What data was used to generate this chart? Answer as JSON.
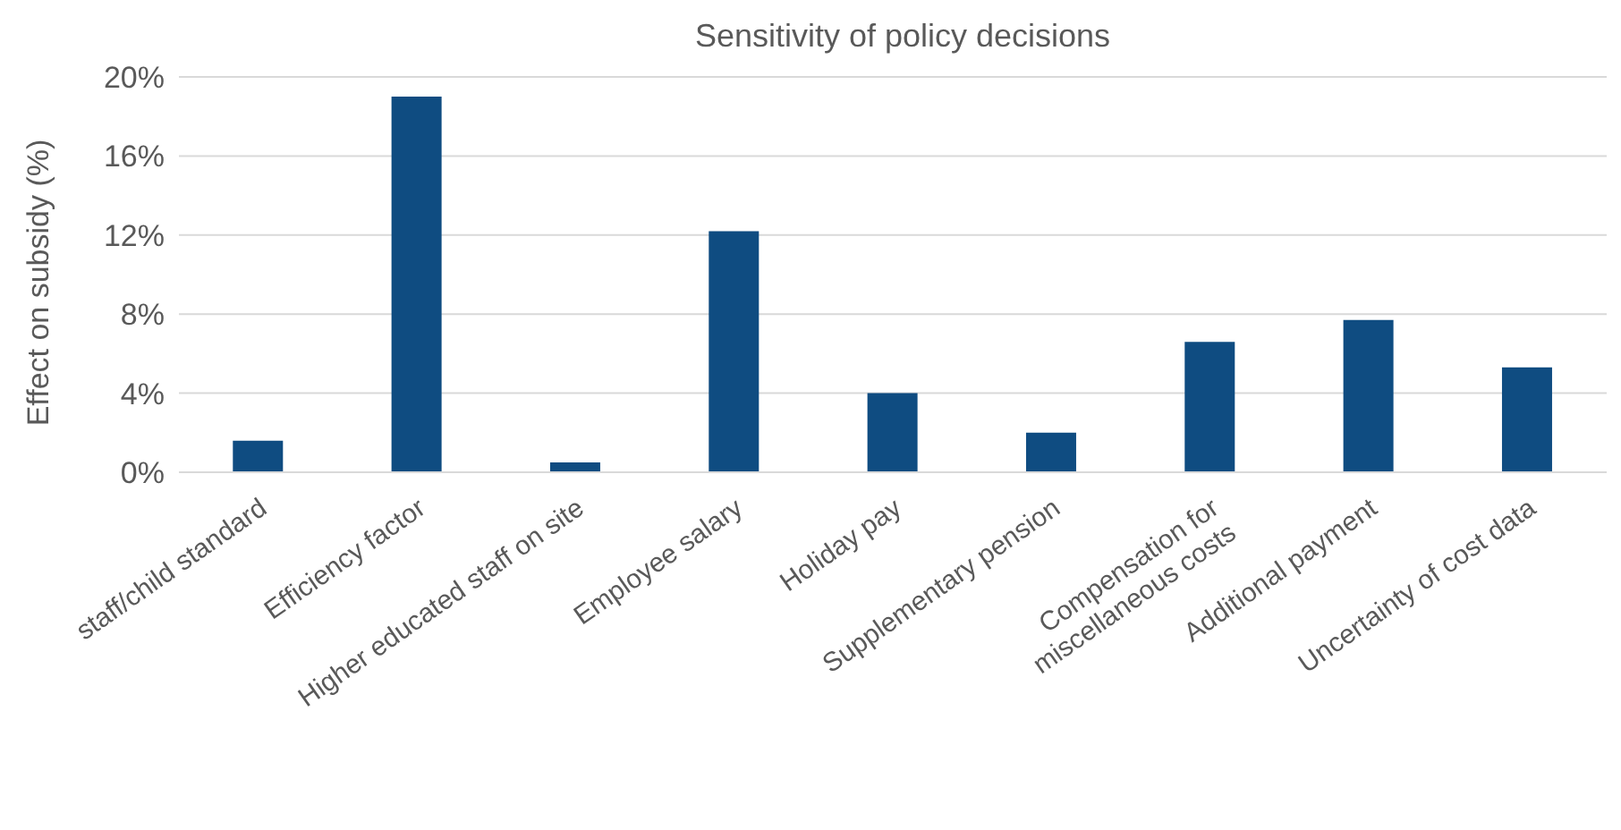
{
  "chart_data": {
    "type": "bar",
    "title": "Sensitivity of policy decisions",
    "ylabel": "Effect on subsidy (%)",
    "categories": [
      "staff/child standard",
      "Efficiency factor",
      "Higher educated staff on site",
      "Employee salary",
      "Holiday pay",
      "Supplementary pension",
      "Compensation for miscellaneous costs",
      "Additional payment",
      "Uncertainty of cost data"
    ],
    "values": [
      1.6,
      19.0,
      0.5,
      12.2,
      4.0,
      2.0,
      6.6,
      7.7,
      5.3
    ],
    "color": "#0f4c81",
    "ylim": [
      0,
      20
    ],
    "yticks": [
      {
        "value": 0,
        "label": "0%"
      },
      {
        "value": 4,
        "label": "4%"
      },
      {
        "value": 8,
        "label": "8%"
      },
      {
        "value": 12,
        "label": "12%"
      },
      {
        "value": 16,
        "label": "16%"
      },
      {
        "value": 20,
        "label": "20%"
      }
    ],
    "grid": "y",
    "legend": false
  }
}
